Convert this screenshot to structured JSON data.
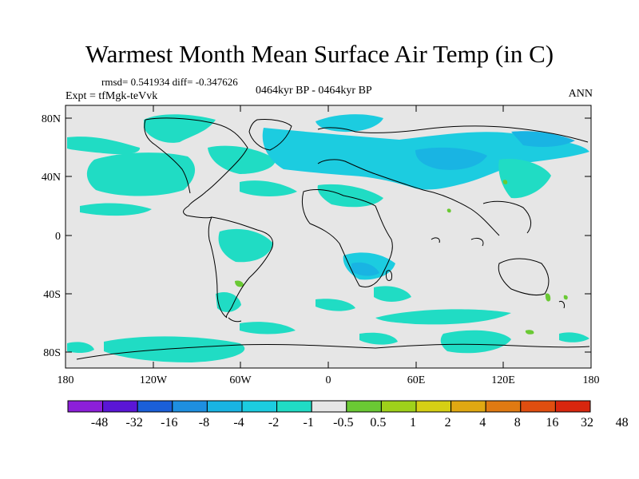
{
  "title": "Warmest Month Mean Surface Air Temp (in C)",
  "stats": "rmsd= 0.541934 diff= -0.347626",
  "experiment": "Expt = tfMgk-teVvk",
  "period": "0464kyr BP - 0464kyr BP",
  "season": "ANN",
  "map": {
    "background_color": "#e6e6e6",
    "lat_ticks": [
      "80N",
      "40N",
      "0",
      "40S",
      "80S"
    ],
    "lon_ticks": [
      "180",
      "120W",
      "60W",
      "0",
      "60E",
      "120E",
      "180"
    ]
  },
  "colorbar": {
    "colors": [
      "#8c1fd9",
      "#5a16d6",
      "#1a5fd8",
      "#1e8fe0",
      "#19b4e3",
      "#1ccce0",
      "#20dcc4",
      "#e6e6e6",
      "#6ac934",
      "#9fd11a",
      "#d6cf14",
      "#e0a812",
      "#e07a12",
      "#e04e10",
      "#d8260e"
    ],
    "labels": [
      "-48",
      "-32",
      "-16",
      "-8",
      "-4",
      "-2",
      "-1",
      "-0.5",
      "0.5",
      "1",
      "2",
      "4",
      "8",
      "16",
      "32",
      "48"
    ]
  }
}
